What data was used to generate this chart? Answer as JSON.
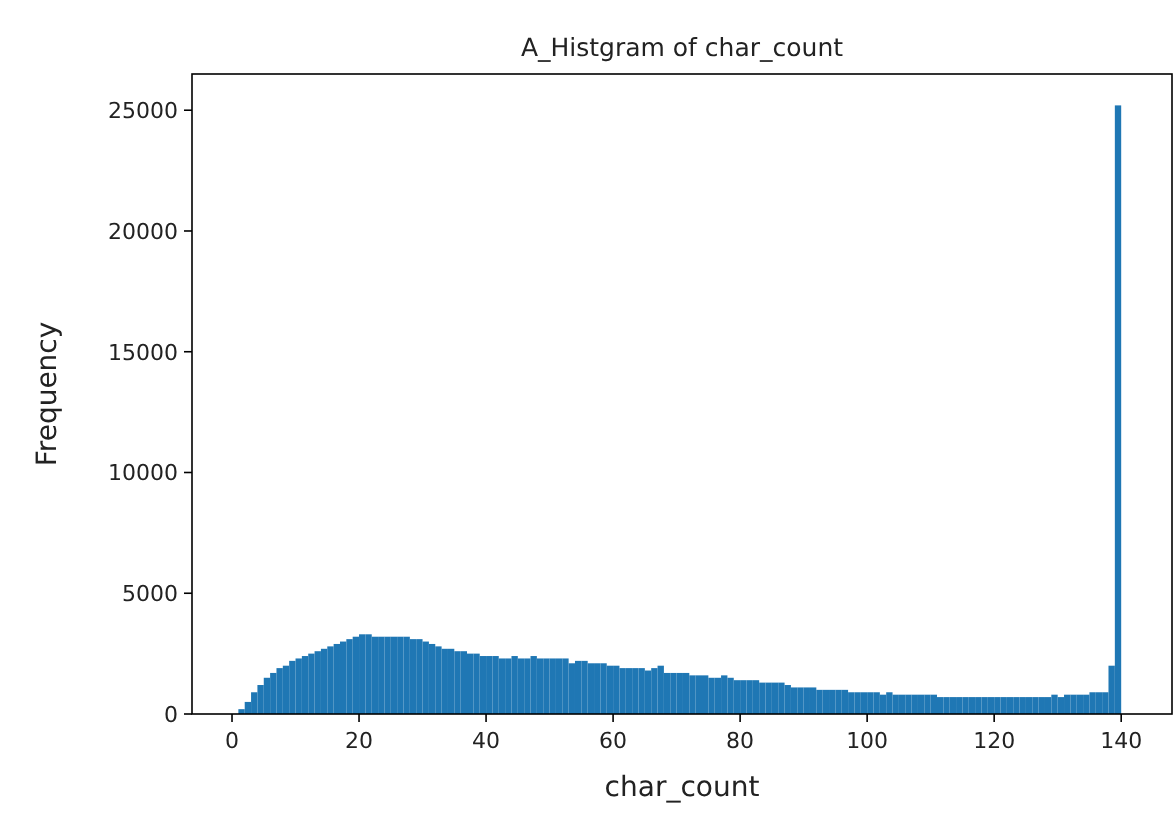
{
  "chart_data": {
    "type": "histogram",
    "title": "A_Histgram of char_count",
    "xlabel": "char_count",
    "ylabel": "Frequency",
    "color": "#1f77b4",
    "bins": [
      1,
      2,
      3,
      4,
      5,
      6,
      7,
      8,
      9,
      10,
      11,
      12,
      13,
      14,
      15,
      16,
      17,
      18,
      19,
      20,
      21,
      22,
      23,
      24,
      25,
      26,
      27,
      28,
      29,
      30,
      31,
      32,
      33,
      34,
      35,
      36,
      37,
      38,
      39,
      40,
      41,
      42,
      43,
      44,
      45,
      46,
      47,
      48,
      49,
      50,
      51,
      52,
      53,
      54,
      55,
      56,
      57,
      58,
      59,
      60,
      61,
      62,
      63,
      64,
      65,
      66,
      67,
      68,
      69,
      70,
      71,
      72,
      73,
      74,
      75,
      76,
      77,
      78,
      79,
      80,
      81,
      82,
      83,
      84,
      85,
      86,
      87,
      88,
      89,
      90,
      91,
      92,
      93,
      94,
      95,
      96,
      97,
      98,
      99,
      100,
      101,
      102,
      103,
      104,
      105,
      106,
      107,
      108,
      109,
      110,
      111,
      112,
      113,
      114,
      115,
      116,
      117,
      118,
      119,
      120,
      121,
      122,
      123,
      124,
      125,
      126,
      127,
      128,
      129,
      130,
      131,
      132,
      133,
      134,
      135,
      136,
      137,
      138,
      139,
      140
    ],
    "values": [
      200,
      500,
      900,
      1200,
      1500,
      1700,
      1900,
      2000,
      2200,
      2300,
      2400,
      2500,
      2600,
      2700,
      2800,
      2900,
      3000,
      3100,
      3200,
      3300,
      3300,
      3200,
      3200,
      3200,
      3200,
      3200,
      3200,
      3100,
      3100,
      3000,
      2900,
      2800,
      2700,
      2700,
      2600,
      2600,
      2500,
      2500,
      2400,
      2400,
      2400,
      2300,
      2300,
      2400,
      2300,
      2300,
      2400,
      2300,
      2300,
      2300,
      2300,
      2300,
      2100,
      2200,
      2200,
      2100,
      2100,
      2100,
      2000,
      2000,
      1900,
      1900,
      1900,
      1900,
      1800,
      1900,
      2000,
      1700,
      1700,
      1700,
      1700,
      1600,
      1600,
      1600,
      1500,
      1500,
      1600,
      1500,
      1400,
      1400,
      1400,
      1400,
      1300,
      1300,
      1300,
      1300,
      1200,
      1100,
      1100,
      1100,
      1100,
      1000,
      1000,
      1000,
      1000,
      1000,
      900,
      900,
      900,
      900,
      900,
      800,
      900,
      800,
      800,
      800,
      800,
      800,
      800,
      800,
      700,
      700,
      700,
      700,
      700,
      700,
      700,
      700,
      700,
      700,
      700,
      700,
      700,
      700,
      700,
      700,
      700,
      700,
      800,
      700,
      800,
      800,
      800,
      800,
      900,
      900,
      900,
      2000,
      25200
    ],
    "xlim": [
      -6.3,
      148
    ],
    "ylim": [
      0,
      26500
    ],
    "xticks": [
      0,
      20,
      40,
      60,
      80,
      100,
      120,
      140
    ],
    "yticks": [
      0,
      5000,
      10000,
      15000,
      20000,
      25000
    ],
    "grid": false
  }
}
